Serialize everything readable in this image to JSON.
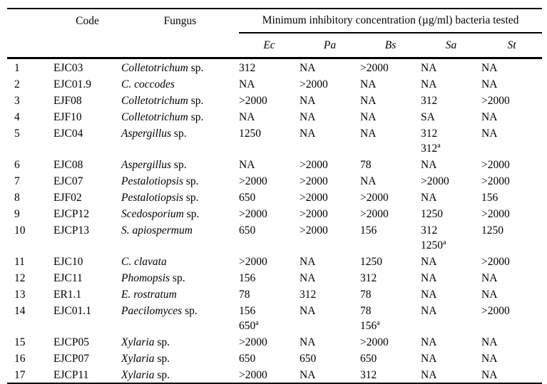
{
  "colors": {
    "background": "#ffffff",
    "text": "#000000",
    "rule": "#000000"
  },
  "table": {
    "header": {
      "code": "Code",
      "fungus": "Fungus",
      "mic_group": "Minimum inhibitory concentration (µg/ml) bacteria tested",
      "bacteria": [
        "Ec",
        "Pa",
        "Bs",
        "Sa",
        "St"
      ]
    },
    "footnote_marker": "a",
    "rows": [
      {
        "num": "1",
        "code": "EJC03",
        "fungus": {
          "italic": "Colletotrichum",
          "rest": " sp."
        },
        "values": [
          [
            "312"
          ],
          [
            "NA"
          ],
          [
            ">2000"
          ],
          [
            "NA"
          ],
          [
            "NA"
          ]
        ]
      },
      {
        "num": "2",
        "code": "EJC01.9",
        "fungus": {
          "italic": "C. coccodes",
          "rest": ""
        },
        "values": [
          [
            "NA"
          ],
          [
            ">2000"
          ],
          [
            "NA"
          ],
          [
            "NA"
          ],
          [
            "NA"
          ]
        ]
      },
      {
        "num": "3",
        "code": "EJF08",
        "fungus": {
          "italic": "Colletotrichum",
          "rest": " sp."
        },
        "values": [
          [
            ">2000"
          ],
          [
            "NA"
          ],
          [
            "NA"
          ],
          [
            "312"
          ],
          [
            ">2000"
          ]
        ]
      },
      {
        "num": "4",
        "code": "EJF10",
        "fungus": {
          "italic": "Colletotrichum",
          "rest": " sp."
        },
        "values": [
          [
            "NA"
          ],
          [
            "NA"
          ],
          [
            "NA"
          ],
          [
            "SA"
          ],
          [
            "NA"
          ]
        ]
      },
      {
        "num": "5",
        "code": "EJC04",
        "fungus": {
          "italic": "Aspergillus",
          "rest": " sp."
        },
        "values": [
          [
            "1250"
          ],
          [
            "NA"
          ],
          [
            "NA"
          ],
          [
            "312",
            {
              "text": "312",
              "sup": "a"
            }
          ],
          [
            "NA"
          ]
        ]
      },
      {
        "num": "6",
        "code": "EJC08",
        "fungus": {
          "italic": "Aspergillus",
          "rest": " sp."
        },
        "values": [
          [
            "NA"
          ],
          [
            ">2000"
          ],
          [
            "78"
          ],
          [
            "NA"
          ],
          [
            ">2000"
          ]
        ]
      },
      {
        "num": "7",
        "code": "EJC07",
        "fungus": {
          "italic": "Pestalotiopsis",
          "rest": " sp."
        },
        "values": [
          [
            ">2000"
          ],
          [
            ">2000"
          ],
          [
            "NA"
          ],
          [
            ">2000"
          ],
          [
            ">2000"
          ]
        ]
      },
      {
        "num": "8",
        "code": "EJF02",
        "fungus": {
          "italic": "Pestalotiopsis",
          "rest": " sp."
        },
        "values": [
          [
            "650"
          ],
          [
            ">2000"
          ],
          [
            ">2000"
          ],
          [
            "NA"
          ],
          [
            "156"
          ]
        ]
      },
      {
        "num": "9",
        "code": "EJCP12",
        "fungus": {
          "italic": "Scedosporium",
          "rest": " sp."
        },
        "values": [
          [
            ">2000"
          ],
          [
            ">2000"
          ],
          [
            ">2000"
          ],
          [
            "1250"
          ],
          [
            ">2000"
          ]
        ]
      },
      {
        "num": "10",
        "code": "EJCP13",
        "fungus": {
          "italic": "S. apiospermum",
          "rest": ""
        },
        "values": [
          [
            "650"
          ],
          [
            ">2000"
          ],
          [
            "156"
          ],
          [
            "312",
            {
              "text": "1250",
              "sup": "a"
            }
          ],
          [
            "1250"
          ]
        ]
      },
      {
        "num": "11",
        "code": "EJC10",
        "fungus": {
          "italic": "C. clavata",
          "rest": ""
        },
        "values": [
          [
            ">2000"
          ],
          [
            "NA"
          ],
          [
            "1250"
          ],
          [
            "NA"
          ],
          [
            ">2000"
          ]
        ]
      },
      {
        "num": "12",
        "code": "EJC11",
        "fungus": {
          "italic": "Phomopsis",
          "rest": " sp."
        },
        "values": [
          [
            "156"
          ],
          [
            "NA"
          ],
          [
            "312"
          ],
          [
            "NA"
          ],
          [
            "NA"
          ]
        ]
      },
      {
        "num": "13",
        "code": "ER1.1",
        "fungus": {
          "italic": "E. rostratum",
          "rest": ""
        },
        "values": [
          [
            "78"
          ],
          [
            "312"
          ],
          [
            "78"
          ],
          [
            "NA"
          ],
          [
            "NA"
          ]
        ]
      },
      {
        "num": "14",
        "code": "EJC01.1",
        "fungus": {
          "italic": "Paecilomyces",
          "rest": " sp."
        },
        "values": [
          [
            "156",
            {
              "text": "650",
              "sup": "a"
            }
          ],
          [
            "NA"
          ],
          [
            "78",
            {
              "text": "156",
              "sup": "a"
            }
          ],
          [
            "NA"
          ],
          [
            ">2000"
          ]
        ]
      },
      {
        "num": "15",
        "code": "EJCP05",
        "fungus": {
          "italic": "Xylaria",
          "rest": " sp."
        },
        "values": [
          [
            ">2000"
          ],
          [
            "NA"
          ],
          [
            ">2000"
          ],
          [
            "NA"
          ],
          [
            "NA"
          ]
        ]
      },
      {
        "num": "16",
        "code": "EJCP07",
        "fungus": {
          "italic": "Xylaria",
          "rest": " sp."
        },
        "values": [
          [
            "650"
          ],
          [
            "650"
          ],
          [
            "650"
          ],
          [
            "NA"
          ],
          [
            "NA"
          ]
        ]
      },
      {
        "num": "17",
        "code": "EJCP11",
        "fungus": {
          "italic": "Xylaria",
          "rest": " sp."
        },
        "values": [
          [
            ">2000"
          ],
          [
            "NA"
          ],
          [
            "312"
          ],
          [
            "NA"
          ],
          [
            "NA"
          ]
        ]
      }
    ]
  }
}
